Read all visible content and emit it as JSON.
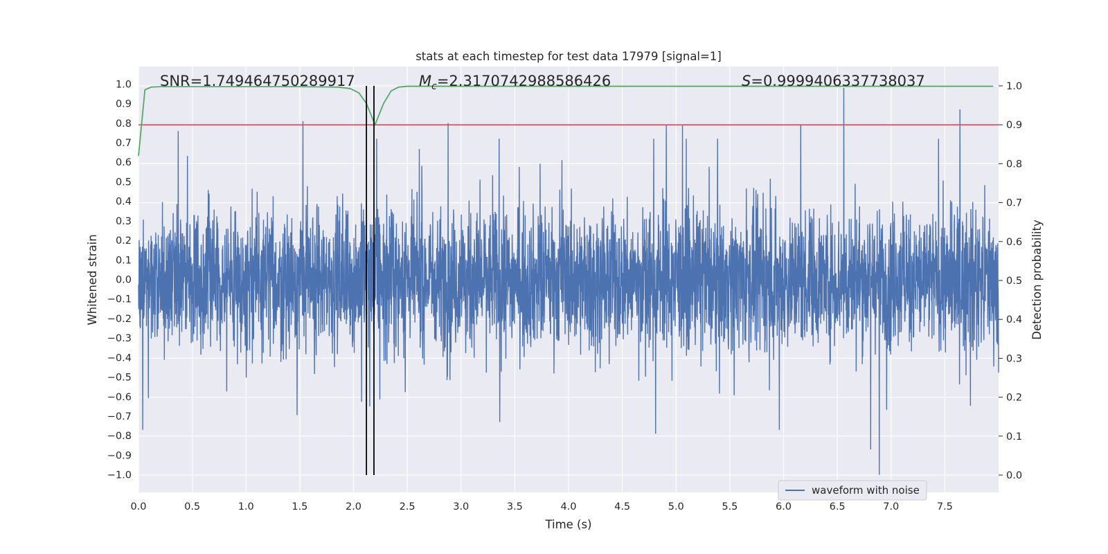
{
  "chart_data": {
    "type": "line",
    "title": "stats at each timestep for test data 17979 [signal=1]",
    "xlabel": "Time (s)",
    "ylabel_left": "Whitened strain",
    "ylabel_right": "Detection probability",
    "xlim": [
      0.0,
      8.0
    ],
    "ylim_left": [
      -1.09,
      1.09
    ],
    "ylim_right": [
      0.0,
      1.0
    ],
    "x_ticks": [
      "0.0",
      "0.5",
      "1.0",
      "1.5",
      "2.0",
      "2.5",
      "3.0",
      "3.5",
      "4.0",
      "4.5",
      "5.0",
      "5.5",
      "6.0",
      "6.5",
      "7.0",
      "7.5"
    ],
    "y_ticks_left": [
      "1.0",
      "0.9",
      "0.8",
      "0.7",
      "0.6",
      "0.5",
      "0.4",
      "0.3",
      "0.2",
      "0.1",
      "0.0",
      "−0.1",
      "−0.2",
      "−0.3",
      "−0.4",
      "−0.5",
      "−0.6",
      "−0.7",
      "−0.8",
      "−0.9",
      "−1.0"
    ],
    "y_ticks_right": [
      "1.0",
      "0.9",
      "0.8",
      "0.7",
      "0.6",
      "0.5",
      "0.4",
      "0.3",
      "0.2",
      "0.1",
      "0.0"
    ],
    "grid": true,
    "legend_position": "lower-right",
    "stats": {
      "snr": "SNR=1.749464750289917",
      "mc_symbol": "M",
      "mc_sub": "c",
      "mc_value": "=2.3170742988586426",
      "s_symbol": "S",
      "s_value": "=0.9999406337738037"
    },
    "series": [
      {
        "name": "waveform with noise",
        "axis": "left",
        "color": "#4c72b0",
        "description_samples": 4096,
        "x_range": [
          0.0,
          8.0
        ],
        "typical_envelope": [
          -0.4,
          0.4
        ],
        "spikes": [
          {
            "x": 0.04,
            "y": -0.77
          },
          {
            "x": 0.37,
            "y": 0.76
          },
          {
            "x": 1.53,
            "y": 0.81
          },
          {
            "x": 2.15,
            "y": -0.65
          },
          {
            "x": 2.88,
            "y": 0.8
          },
          {
            "x": 3.36,
            "y": -0.73
          },
          {
            "x": 4.81,
            "y": -0.79
          },
          {
            "x": 4.91,
            "y": 0.79
          },
          {
            "x": 5.06,
            "y": 0.79
          },
          {
            "x": 5.96,
            "y": -0.77
          },
          {
            "x": 6.16,
            "y": 0.79
          },
          {
            "x": 6.56,
            "y": 0.98
          },
          {
            "x": 6.81,
            "y": -0.87
          },
          {
            "x": 6.89,
            "y": -1.0
          },
          {
            "x": 7.64,
            "y": 0.87
          }
        ]
      },
      {
        "name": "detection probability",
        "axis": "right",
        "color": "#55a868",
        "x": [
          0.0,
          0.06,
          0.12,
          0.2,
          0.5,
          1.0,
          1.5,
          1.85,
          1.97,
          2.05,
          2.12,
          2.2,
          2.28,
          2.35,
          2.42,
          2.5,
          3.0,
          4.0,
          5.0,
          6.0,
          7.0,
          7.95
        ],
        "y": [
          0.82,
          0.99,
          0.997,
          0.998,
          0.998,
          0.998,
          0.998,
          0.997,
          0.993,
          0.982,
          0.955,
          0.9,
          0.955,
          0.987,
          0.997,
          0.999,
          0.999,
          0.999,
          0.999,
          0.999,
          0.999,
          0.999
        ]
      }
    ],
    "threshold": {
      "axis": "right",
      "y": 0.9,
      "color": "#c44e52"
    },
    "vertical_markers": [
      {
        "x": 2.12,
        "color": "#000000"
      },
      {
        "x": 2.19,
        "color": "#000000"
      }
    ]
  }
}
